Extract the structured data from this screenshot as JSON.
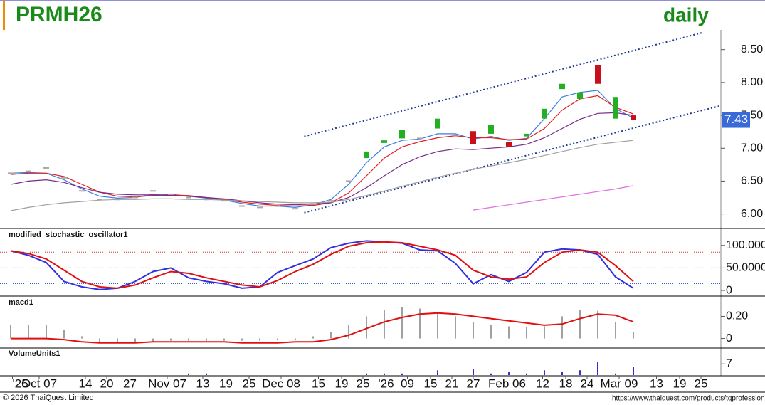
{
  "chart_data": [
    {
      "type": "candlestick",
      "title": "PRMH26",
      "subtitle": "daily",
      "open": [
        6.62,
        6.65,
        6.7,
        6.55,
        6.35,
        6.22,
        6.22,
        6.25,
        6.35,
        6.3,
        6.25,
        6.22,
        6.2,
        6.12,
        6.1,
        6.12,
        6.08,
        6.15,
        6.2,
        6.5,
        6.85,
        7.08,
        7.15,
        7.15,
        7.3,
        7.2,
        7.26,
        7.22,
        7.1,
        7.18,
        7.45,
        7.9,
        7.75,
        8.26,
        7.45,
        7.5
      ],
      "close": [
        6.62,
        6.65,
        6.7,
        6.55,
        6.35,
        6.22,
        6.22,
        6.25,
        6.35,
        6.3,
        6.25,
        6.22,
        6.2,
        6.12,
        6.1,
        6.12,
        6.08,
        6.15,
        6.2,
        6.5,
        6.95,
        7.12,
        7.28,
        7.15,
        7.45,
        7.2,
        7.06,
        7.35,
        7.02,
        7.22,
        7.6,
        7.98,
        7.85,
        7.98,
        7.78,
        7.43
      ],
      "up_color": "#22b022",
      "down_color": "#c8101a",
      "flat_color": "#a8a8a8",
      "series": [
        {
          "color": "#3a7ee0",
          "values": [
            6.62,
            6.63,
            6.62,
            6.52,
            6.38,
            6.27,
            6.24,
            6.25,
            6.3,
            6.3,
            6.27,
            6.24,
            6.21,
            6.16,
            6.12,
            6.12,
            6.1,
            6.14,
            6.22,
            6.45,
            6.78,
            7.02,
            7.12,
            7.14,
            7.22,
            7.22,
            7.14,
            7.18,
            7.12,
            7.15,
            7.45,
            7.78,
            7.85,
            7.88,
            7.6,
            7.46
          ]
        },
        {
          "color": "#e02020",
          "values": [
            6.6,
            6.62,
            6.62,
            6.57,
            6.45,
            6.33,
            6.27,
            6.26,
            6.28,
            6.29,
            6.28,
            6.25,
            6.22,
            6.18,
            6.15,
            6.13,
            6.12,
            6.13,
            6.17,
            6.32,
            6.58,
            6.85,
            7.02,
            7.1,
            7.16,
            7.19,
            7.16,
            7.16,
            7.13,
            7.14,
            7.3,
            7.58,
            7.75,
            7.8,
            7.62,
            7.52
          ]
        },
        {
          "color": "#7a2a8a",
          "values": [
            6.45,
            6.5,
            6.52,
            6.48,
            6.4,
            6.33,
            6.3,
            6.29,
            6.29,
            6.28,
            6.27,
            6.25,
            6.23,
            6.2,
            6.17,
            6.15,
            6.14,
            6.15,
            6.17,
            6.25,
            6.4,
            6.58,
            6.75,
            6.87,
            6.95,
            6.99,
            6.98,
            7.0,
            7.02,
            7.06,
            7.16,
            7.3,
            7.44,
            7.53,
            7.54,
            7.5
          ]
        },
        {
          "color": "#a0a0a0",
          "values": [
            6.05,
            6.1,
            6.14,
            6.17,
            6.19,
            6.21,
            6.22,
            6.22,
            6.23,
            6.23,
            6.22,
            6.22,
            6.21,
            6.2,
            6.19,
            6.18,
            6.17,
            6.17,
            6.18,
            6.22,
            6.28,
            6.35,
            6.42,
            6.49,
            6.56,
            6.62,
            6.68,
            6.73,
            6.78,
            6.83,
            6.89,
            6.95,
            7.01,
            7.06,
            7.09,
            7.12
          ]
        },
        {
          "color": "#e070e0",
          "values": [
            null,
            null,
            null,
            null,
            null,
            null,
            null,
            null,
            null,
            null,
            null,
            null,
            null,
            null,
            null,
            null,
            null,
            null,
            null,
            null,
            null,
            null,
            null,
            null,
            null,
            null,
            6.06,
            6.1,
            6.14,
            6.18,
            6.22,
            6.26,
            6.3,
            6.34,
            6.38,
            6.43
          ]
        }
      ],
      "trendlines": [
        {
          "x": [
            16.5,
            38.9
          ],
          "y": [
            7.18,
            8.76
          ]
        },
        {
          "x": [
            16.5,
            39.8
          ],
          "y": [
            6.02,
            7.64
          ]
        }
      ],
      "trendline_color": "#1f3a93",
      "last_price": 7.43,
      "last_price_color": "#3a6ad8",
      "ylim": [
        5.79,
        8.8
      ],
      "yticks": [
        {
          "value": 6,
          "label": "6.00"
        },
        {
          "value": 6.5,
          "label": "6.50"
        },
        {
          "value": 7,
          "label": "7.00"
        },
        {
          "value": 7.5,
          "label": "7.50"
        },
        {
          "value": 8,
          "label": "8.00"
        },
        {
          "value": 8.5,
          "label": "8.50"
        }
      ]
    },
    {
      "type": "line",
      "title": "modified_stochastic_oscillator1",
      "series": [
        {
          "color": "#3030e0",
          "values": [
            88,
            78,
            62,
            20,
            8,
            2,
            5,
            20,
            42,
            50,
            28,
            20,
            15,
            5,
            8,
            40,
            55,
            70,
            95,
            105,
            110,
            108,
            105,
            90,
            88,
            60,
            15,
            35,
            20,
            40,
            85,
            92,
            90,
            80,
            30,
            5
          ]
        },
        {
          "color": "#e01010",
          "values": [
            88,
            82,
            70,
            45,
            20,
            8,
            5,
            12,
            28,
            42,
            38,
            28,
            20,
            12,
            8,
            22,
            42,
            58,
            80,
            98,
            106,
            108,
            106,
            98,
            90,
            78,
            45,
            30,
            25,
            30,
            62,
            85,
            90,
            85,
            55,
            20
          ]
        }
      ],
      "hlines": [
        {
          "value": 85,
          "color": "#cc3333"
        },
        {
          "value": 50,
          "color": "#777777"
        },
        {
          "value": 15,
          "color": "#3366cc"
        }
      ],
      "ylim": [
        -11,
        136
      ],
      "yticks": [
        0,
        {
          "value": 50,
          "label": "50.0000"
        },
        {
          "value": 100,
          "label": "100.0000"
        }
      ]
    },
    {
      "type": "macd",
      "title": "macd1",
      "bar_color": "#a0a0a0",
      "line_color": "#e01010",
      "histogram": [
        0.12,
        0.12,
        0.12,
        0.08,
        0.02,
        -0.03,
        -0.04,
        -0.04,
        -0.03,
        -0.02,
        -0.02,
        -0.02,
        -0.02,
        -0.02,
        -0.02,
        -0.01,
        -0.01,
        0.02,
        0.06,
        0.12,
        0.2,
        0.26,
        0.28,
        0.27,
        0.24,
        0.2,
        0.15,
        0.12,
        0.11,
        0.1,
        0.11,
        0.2,
        0.26,
        0.25,
        0.15,
        0.06
      ],
      "values": [
        0.0,
        0.0,
        0.0,
        -0.01,
        -0.03,
        -0.04,
        -0.04,
        -0.04,
        -0.03,
        -0.03,
        -0.03,
        -0.03,
        -0.03,
        -0.04,
        -0.04,
        -0.04,
        -0.03,
        -0.03,
        -0.01,
        0.03,
        0.09,
        0.15,
        0.19,
        0.22,
        0.23,
        0.22,
        0.2,
        0.18,
        0.16,
        0.14,
        0.12,
        0.13,
        0.18,
        0.22,
        0.21,
        0.15
      ],
      "ylim": [
        -0.08,
        0.37
      ],
      "yticks": [
        0,
        {
          "value": 0.2,
          "label": "0.20"
        }
      ]
    },
    {
      "type": "bar",
      "title": "VolumeUnits1",
      "color": "#3030d0",
      "values": [
        0,
        0,
        0,
        0,
        0,
        0,
        0,
        0,
        0,
        0,
        1,
        1,
        0,
        0,
        0,
        0,
        0,
        0,
        0,
        0,
        1,
        1,
        1,
        0,
        3,
        0,
        4,
        1,
        2,
        1,
        3,
        2,
        3,
        8,
        1,
        5
      ],
      "ylim": [
        0,
        16
      ],
      "yticks": [
        7
      ],
      "xlim": [
        0,
        40
      ],
      "xticks": [
        {
          "value": 0.1,
          "label": "'25"
        },
        {
          "value": 1.6,
          "label": "Oct 07"
        },
        {
          "value": 4.2,
          "label": "14"
        },
        {
          "value": 5.4,
          "label": "20"
        },
        {
          "value": 6.7,
          "label": "27"
        },
        {
          "value": 8.8,
          "label": "Nov 07"
        },
        {
          "value": 10.8,
          "label": "13"
        },
        {
          "value": 12.1,
          "label": "19"
        },
        {
          "value": 13.4,
          "label": "25"
        },
        {
          "value": 15.2,
          "label": "Dec 08"
        },
        {
          "value": 17.3,
          "label": "15"
        },
        {
          "value": 18.6,
          "label": "19"
        },
        {
          "value": 19.8,
          "label": "25"
        },
        {
          "value": 21.1,
          "label": "'26"
        },
        {
          "value": 22.3,
          "label": "09"
        },
        {
          "value": 23.6,
          "label": "15"
        },
        {
          "value": 24.8,
          "label": "21"
        },
        {
          "value": 26.0,
          "label": "27"
        },
        {
          "value": 27.9,
          "label": "Feb 06"
        },
        {
          "value": 29.9,
          "label": "12"
        },
        {
          "value": 31.2,
          "label": "18"
        },
        {
          "value": 32.4,
          "label": "24"
        },
        {
          "value": 34.2,
          "label": "Mar 09"
        },
        {
          "value": 36.3,
          "label": "13"
        },
        {
          "value": 37.6,
          "label": "19"
        },
        {
          "value": 38.8,
          "label": "25"
        }
      ]
    }
  ],
  "footer": {
    "copyright": "© 2026 ThaiQuest Limited",
    "url": "https://www.thaiquest.com/products/tqprofessiona"
  }
}
